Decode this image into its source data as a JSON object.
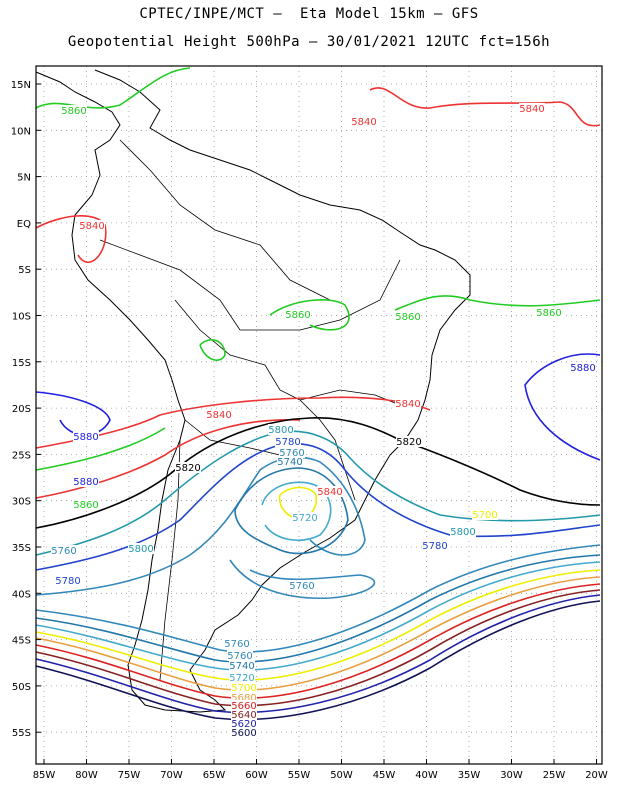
{
  "header": {
    "line1": "CPTEC/INPE/MCT –  Eta Model 15km – GFS",
    "line2": "Geopotential Height 500hPa – 30/01/2021 12UTC fct=156h"
  },
  "axes": {
    "lat_labels": [
      "15N",
      "10N",
      "5N",
      "EQ",
      "5S",
      "10S",
      "15S",
      "20S",
      "25S",
      "30S",
      "35S",
      "40S",
      "45S",
      "50S",
      "55S"
    ],
    "lon_labels": [
      "85W",
      "80W",
      "75W",
      "70W",
      "65W",
      "60W",
      "55W",
      "50W",
      "45W",
      "40W",
      "35W",
      "30W",
      "25W",
      "20W"
    ]
  },
  "colors": {
    "c5880": "#2222dd",
    "c5860": "#22cc22",
    "c5840": "#ee3333",
    "c5820": "#000000",
    "c5800": "#2299aa",
    "c5780": "#2244cc",
    "c5760": "#3388bb",
    "c5740": "#2277aa",
    "c5720": "#44aacc",
    "c5700": "#eeee00",
    "c5680": "#e8a040",
    "c5660": "#dd2222",
    "c5640": "#882222",
    "c5620": "#2222aa",
    "c5600": "#111155"
  },
  "contour_labels": [
    {
      "text": "5860",
      "color": "c5860"
    },
    {
      "text": "5840",
      "color": "c5840"
    },
    {
      "text": "5840",
      "color": "c5840"
    },
    {
      "text": "5840",
      "color": "c5840"
    },
    {
      "text": "5860",
      "color": "c5860"
    },
    {
      "text": "5860",
      "color": "c5860"
    },
    {
      "text": "5860",
      "color": "c5860"
    },
    {
      "text": "5880",
      "color": "c5880"
    },
    {
      "text": "5840",
      "color": "c5840"
    },
    {
      "text": "5840",
      "color": "c5840"
    },
    {
      "text": "5880",
      "color": "c5880"
    },
    {
      "text": "5820",
      "color": "c5820"
    },
    {
      "text": "5800",
      "color": "c5800"
    },
    {
      "text": "5780",
      "color": "c5780"
    },
    {
      "text": "5760",
      "color": "c5760"
    },
    {
      "text": "5740",
      "color": "c5740"
    },
    {
      "text": "5820",
      "color": "c5820"
    },
    {
      "text": "5880",
      "color": "c5880"
    },
    {
      "text": "5860",
      "color": "c5860"
    },
    {
      "text": "5840",
      "color": "c5840"
    },
    {
      "text": "5720",
      "color": "c5720"
    },
    {
      "text": "5700",
      "color": "c5700"
    },
    {
      "text": "5800",
      "color": "c5800"
    },
    {
      "text": "5780",
      "color": "c5780"
    },
    {
      "text": "5760",
      "color": "c5760"
    },
    {
      "text": "5800",
      "color": "c5800"
    },
    {
      "text": "5780",
      "color": "c5780"
    },
    {
      "text": "5760",
      "color": "c5760"
    },
    {
      "text": "5760",
      "color": "c5760"
    },
    {
      "text": "5760",
      "color": "c5760"
    },
    {
      "text": "5740",
      "color": "c5740"
    },
    {
      "text": "5720",
      "color": "c5720"
    },
    {
      "text": "5700",
      "color": "c5700"
    },
    {
      "text": "5680",
      "color": "c5680"
    },
    {
      "text": "5660",
      "color": "c5660"
    },
    {
      "text": "5640",
      "color": "c5640"
    },
    {
      "text": "5620",
      "color": "c5620"
    },
    {
      "text": "5600",
      "color": "c5600"
    }
  ]
}
